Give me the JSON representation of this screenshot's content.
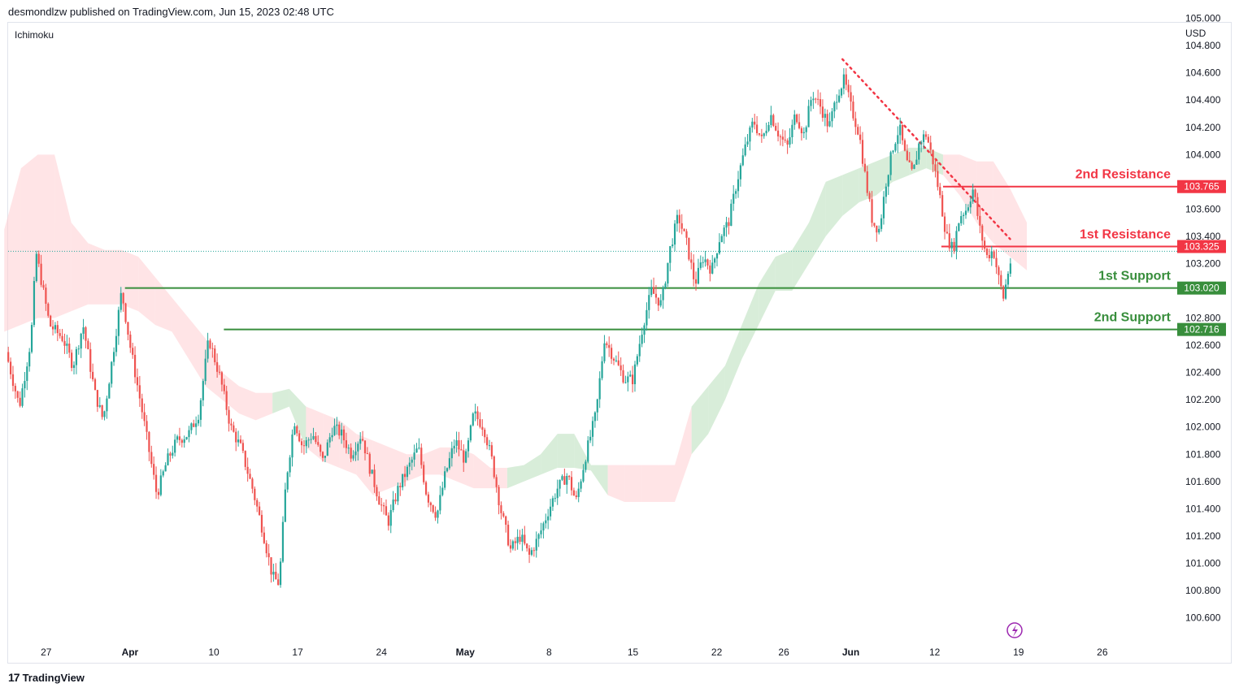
{
  "header": {
    "publisher_line": "desmondlzw published on TradingView.com, Jun 15, 2023 02:48 UTC"
  },
  "indicator_label": "Ichimoku",
  "currency_label": "USD",
  "footer": {
    "brand": "TradingView",
    "logo_glyph": "17"
  },
  "colors": {
    "up": "#26a69a",
    "down": "#ef5350",
    "resistance": "#f23645",
    "support": "#388e3c",
    "cloud_bull": "#c8e6c9",
    "cloud_bear": "#ffcdd2",
    "last_price_line": "#26a69a"
  },
  "chart_data": {
    "type": "candlestick",
    "instrument_currency": "USD",
    "indicator": "Ichimoku",
    "ylim": [
      100.4,
      105.2
    ],
    "yticks": [
      "105.000",
      "104.800",
      "104.600",
      "104.400",
      "104.200",
      "104.000",
      "103.800",
      "103.600",
      "103.400",
      "103.200",
      "103.000",
      "102.800",
      "102.600",
      "102.400",
      "102.200",
      "102.000",
      "101.800",
      "101.600",
      "101.400",
      "101.200",
      "101.000",
      "100.800",
      "100.600"
    ],
    "xticks": [
      {
        "label": "27",
        "bold": false,
        "day": -10
      },
      {
        "label": "Apr",
        "bold": true,
        "day": -5
      },
      {
        "label": "10",
        "bold": false,
        "day": 0
      },
      {
        "label": "17",
        "bold": false,
        "day": 5
      },
      {
        "label": "24",
        "bold": false,
        "day": 10
      },
      {
        "label": "May",
        "bold": true,
        "day": 15
      },
      {
        "label": "8",
        "bold": false,
        "day": 20
      },
      {
        "label": "15",
        "bold": false,
        "day": 25
      },
      {
        "label": "22",
        "bold": false,
        "day": 30
      },
      {
        "label": "26",
        "bold": false,
        "day": 34
      },
      {
        "label": "Jun",
        "bold": true,
        "day": 38
      },
      {
        "label": "12",
        "bold": false,
        "day": 43
      },
      {
        "label": "19",
        "bold": false,
        "day": 48
      },
      {
        "label": "26",
        "bold": false,
        "day": 53
      }
    ],
    "levels": [
      {
        "name": "2nd Resistance",
        "value": 103.765,
        "tag": "103.765",
        "kind": "resistance"
      },
      {
        "name": "1st Resistance",
        "value": 103.325,
        "tag": "103.325",
        "kind": "resistance"
      },
      {
        "name": "1st Support",
        "value": 103.02,
        "tag": "103.020",
        "kind": "support"
      },
      {
        "name": "2nd Support",
        "value": 102.716,
        "tag": "102.716",
        "kind": "support"
      }
    ],
    "last_price": 103.29,
    "trendline": {
      "style": "dotted",
      "from": {
        "day": 37.5,
        "value": 104.7
      },
      "to": {
        "day": 47.5,
        "value": 103.38
      }
    },
    "price_path": [
      [
        -12.4,
        102.55
      ],
      [
        -11.6,
        102.15
      ],
      [
        -10.9,
        102.65
      ],
      [
        -10.6,
        103.28
      ],
      [
        -9.8,
        102.75
      ],
      [
        -9.0,
        102.65
      ],
      [
        -8.4,
        102.45
      ],
      [
        -7.8,
        102.75
      ],
      [
        -7.1,
        102.25
      ],
      [
        -6.6,
        102.05
      ],
      [
        -6.0,
        102.55
      ],
      [
        -5.5,
        103.0
      ],
      [
        -5.0,
        102.6
      ],
      [
        -4.4,
        102.2
      ],
      [
        -3.9,
        101.85
      ],
      [
        -3.4,
        101.5
      ],
      [
        -2.8,
        101.75
      ],
      [
        -2.2,
        101.9
      ],
      [
        -1.5,
        101.95
      ],
      [
        -0.9,
        102.1
      ],
      [
        -0.3,
        102.65
      ],
      [
        0.4,
        102.35
      ],
      [
        1.0,
        102.0
      ],
      [
        1.6,
        101.85
      ],
      [
        2.3,
        101.55
      ],
      [
        2.9,
        101.25
      ],
      [
        3.5,
        100.9
      ],
      [
        3.9,
        100.85
      ],
      [
        4.3,
        101.6
      ],
      [
        4.8,
        102.05
      ],
      [
        5.3,
        101.85
      ],
      [
        5.9,
        101.95
      ],
      [
        6.5,
        101.75
      ],
      [
        7.1,
        102.0
      ],
      [
        7.6,
        101.95
      ],
      [
        8.2,
        101.8
      ],
      [
        8.8,
        101.95
      ],
      [
        9.3,
        101.7
      ],
      [
        9.9,
        101.45
      ],
      [
        10.4,
        101.3
      ],
      [
        11.0,
        101.55
      ],
      [
        11.6,
        101.7
      ],
      [
        12.2,
        101.85
      ],
      [
        12.7,
        101.5
      ],
      [
        13.3,
        101.35
      ],
      [
        13.8,
        101.65
      ],
      [
        14.4,
        101.9
      ],
      [
        15.0,
        101.75
      ],
      [
        15.5,
        102.1
      ],
      [
        16.1,
        102.0
      ],
      [
        16.6,
        101.75
      ],
      [
        17.1,
        101.4
      ],
      [
        17.7,
        101.1
      ],
      [
        18.3,
        101.2
      ],
      [
        18.8,
        101.05
      ],
      [
        19.4,
        101.2
      ],
      [
        20.0,
        101.4
      ],
      [
        20.5,
        101.55
      ],
      [
        21.1,
        101.65
      ],
      [
        21.6,
        101.45
      ],
      [
        22.2,
        101.8
      ],
      [
        22.8,
        102.1
      ],
      [
        23.3,
        102.65
      ],
      [
        23.9,
        102.5
      ],
      [
        24.5,
        102.35
      ],
      [
        25.0,
        102.35
      ],
      [
        25.6,
        102.75
      ],
      [
        26.1,
        103.0
      ],
      [
        26.7,
        102.9
      ],
      [
        27.2,
        103.3
      ],
      [
        27.7,
        103.55
      ],
      [
        28.2,
        103.35
      ],
      [
        28.7,
        103.05
      ],
      [
        29.2,
        103.25
      ],
      [
        29.7,
        103.15
      ],
      [
        30.2,
        103.4
      ],
      [
        30.7,
        103.5
      ],
      [
        31.2,
        103.8
      ],
      [
        31.7,
        104.05
      ],
      [
        32.2,
        104.25
      ],
      [
        32.7,
        104.1
      ],
      [
        33.2,
        104.3
      ],
      [
        33.7,
        104.15
      ],
      [
        34.2,
        104.05
      ],
      [
        34.7,
        104.3
      ],
      [
        35.2,
        104.15
      ],
      [
        35.7,
        104.45
      ],
      [
        36.2,
        104.35
      ],
      [
        36.7,
        104.2
      ],
      [
        37.2,
        104.45
      ],
      [
        37.6,
        104.55
      ],
      [
        38.0,
        104.35
      ],
      [
        38.5,
        104.15
      ],
      [
        38.9,
        103.8
      ],
      [
        39.3,
        103.5
      ],
      [
        39.7,
        103.45
      ],
      [
        40.1,
        103.8
      ],
      [
        40.5,
        104.05
      ],
      [
        40.9,
        104.2
      ],
      [
        41.3,
        103.95
      ],
      [
        41.7,
        103.85
      ],
      [
        42.1,
        104.1
      ],
      [
        42.5,
        104.15
      ],
      [
        42.9,
        103.95
      ],
      [
        43.3,
        103.7
      ],
      [
        43.7,
        103.4
      ],
      [
        44.1,
        103.3
      ],
      [
        44.5,
        103.55
      ],
      [
        44.9,
        103.6
      ],
      [
        45.3,
        103.75
      ],
      [
        45.7,
        103.45
      ],
      [
        46.1,
        103.25
      ],
      [
        46.5,
        103.3
      ],
      [
        46.8,
        103.1
      ],
      [
        47.1,
        102.95
      ],
      [
        47.4,
        103.15
      ],
      [
        47.6,
        103.25
      ]
    ],
    "cloud": [
      [
        -12.5,
        102.7,
        103.45
      ],
      [
        -11.5,
        102.75,
        103.9
      ],
      [
        -10.5,
        102.8,
        104.0
      ],
      [
        -9.5,
        102.8,
        104.0
      ],
      [
        -8.5,
        102.85,
        103.5
      ],
      [
        -7.5,
        102.9,
        103.35
      ],
      [
        -6.5,
        102.9,
        103.3
      ],
      [
        -5.5,
        102.9,
        103.3
      ],
      [
        -4.5,
        102.85,
        103.25
      ],
      [
        -3.5,
        102.75,
        103.1
      ],
      [
        -2.5,
        102.7,
        102.95
      ],
      [
        -1.5,
        102.5,
        102.8
      ],
      [
        -0.5,
        102.3,
        102.65
      ],
      [
        0.5,
        102.2,
        102.4
      ],
      [
        1.5,
        102.1,
        102.3
      ],
      [
        2.5,
        102.05,
        102.25
      ],
      [
        3.5,
        102.1,
        102.25
      ],
      [
        4.5,
        102.15,
        102.28
      ],
      [
        5.5,
        101.85,
        102.15
      ],
      [
        6.5,
        101.75,
        102.1
      ],
      [
        7.5,
        101.7,
        102.05
      ],
      [
        8.5,
        101.65,
        101.95
      ],
      [
        9.5,
        101.5,
        101.9
      ],
      [
        10.5,
        101.55,
        101.85
      ],
      [
        11.5,
        101.6,
        101.8
      ],
      [
        12.5,
        101.65,
        101.8
      ],
      [
        13.5,
        101.65,
        101.85
      ],
      [
        14.5,
        101.6,
        101.85
      ],
      [
        15.5,
        101.55,
        101.8
      ],
      [
        16.5,
        101.55,
        101.7
      ],
      [
        17.5,
        101.55,
        101.7
      ],
      [
        18.5,
        101.6,
        101.72
      ],
      [
        19.5,
        101.65,
        101.8
      ],
      [
        20.5,
        101.7,
        101.95
      ],
      [
        21.5,
        101.7,
        101.95
      ],
      [
        22.5,
        101.68,
        101.72
      ],
      [
        23.5,
        101.5,
        101.72
      ],
      [
        24.5,
        101.45,
        101.72
      ],
      [
        25.5,
        101.45,
        101.72
      ],
      [
        26.5,
        101.45,
        101.72
      ],
      [
        27.5,
        101.45,
        101.72
      ],
      [
        28.5,
        101.8,
        102.15
      ],
      [
        29.5,
        101.95,
        102.3
      ],
      [
        30.5,
        102.2,
        102.45
      ],
      [
        31.5,
        102.5,
        102.75
      ],
      [
        32.5,
        102.75,
        103.05
      ],
      [
        33.5,
        103.0,
        103.25
      ],
      [
        34.5,
        103.0,
        103.3
      ],
      [
        35.5,
        103.2,
        103.5
      ],
      [
        36.5,
        103.4,
        103.8
      ],
      [
        37.5,
        103.55,
        103.85
      ],
      [
        38.5,
        103.65,
        103.9
      ],
      [
        39.5,
        103.7,
        103.95
      ],
      [
        40.5,
        103.8,
        104.0
      ],
      [
        41.5,
        103.85,
        104.05
      ],
      [
        42.5,
        103.9,
        104.05
      ],
      [
        43.5,
        103.85,
        104.0
      ],
      [
        44.5,
        103.7,
        104.0
      ],
      [
        45.5,
        103.5,
        103.95
      ],
      [
        46.5,
        103.35,
        103.95
      ],
      [
        47.5,
        103.25,
        103.75
      ],
      [
        48.5,
        103.15,
        103.5
      ]
    ]
  }
}
